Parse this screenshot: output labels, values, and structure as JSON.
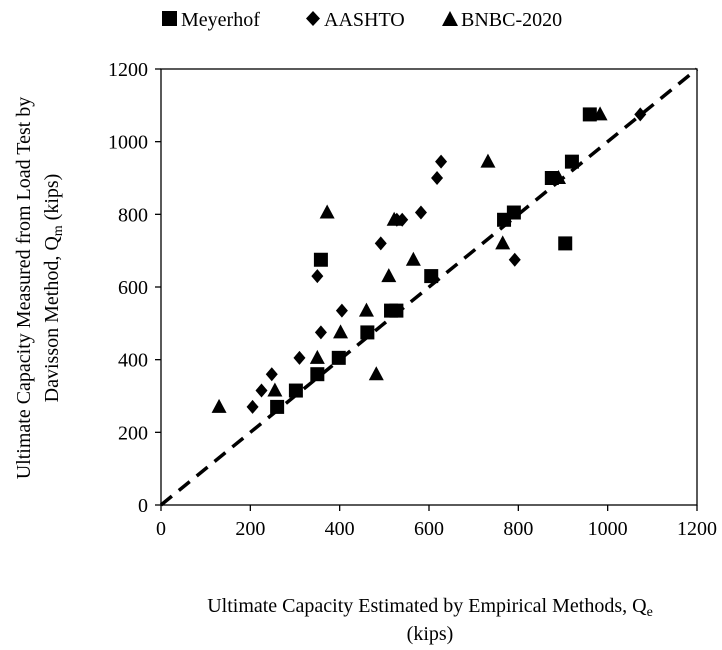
{
  "chart_data": {
    "type": "scatter",
    "xlim": [
      0,
      1200
    ],
    "ylim": [
      0,
      1200
    ],
    "x_ticks": [
      0,
      200,
      400,
      600,
      800,
      1000,
      1200
    ],
    "y_ticks": [
      0,
      200,
      400,
      600,
      800,
      1000,
      1200
    ],
    "grid": false,
    "legend_position": "top",
    "xlabel": {
      "main": "Ultimate Capacity Estimated by Empirical Methods, Q",
      "sub": "e",
      "line2": "(kips)"
    },
    "ylabel": {
      "line1": "Ultimate Capacity Measured from Load Test by",
      "line2_main": "Davisson Method, Q",
      "line2_sub": "m",
      "line2_tail": " (kips)"
    },
    "reference_line": {
      "style": "dashed",
      "from": [
        0,
        0
      ],
      "to": [
        1200,
        1200
      ]
    },
    "series": [
      {
        "name": "Meyerhof",
        "marker": "square",
        "color": "#000000",
        "points": [
          [
            260,
            270
          ],
          [
            302,
            315
          ],
          [
            350,
            360
          ],
          [
            358,
            675
          ],
          [
            398,
            405
          ],
          [
            462,
            475
          ],
          [
            515,
            535
          ],
          [
            527,
            535
          ],
          [
            605,
            630
          ],
          [
            768,
            785
          ],
          [
            790,
            805
          ],
          [
            875,
            900
          ],
          [
            905,
            720
          ],
          [
            920,
            945
          ],
          [
            960,
            1075
          ]
        ]
      },
      {
        "name": "AASHTO",
        "marker": "diamond",
        "color": "#000000",
        "points": [
          [
            205,
            270
          ],
          [
            225,
            315
          ],
          [
            248,
            360
          ],
          [
            310,
            405
          ],
          [
            350,
            630
          ],
          [
            358,
            475
          ],
          [
            405,
            535
          ],
          [
            492,
            720
          ],
          [
            528,
            785
          ],
          [
            540,
            785
          ],
          [
            582,
            805
          ],
          [
            618,
            900
          ],
          [
            627,
            945
          ],
          [
            792,
            675
          ],
          [
            1073,
            1075
          ]
        ]
      },
      {
        "name": "BNBC-2020",
        "marker": "triangle",
        "color": "#000000",
        "points": [
          [
            130,
            270
          ],
          [
            255,
            315
          ],
          [
            350,
            405
          ],
          [
            372,
            805
          ],
          [
            402,
            475
          ],
          [
            460,
            535
          ],
          [
            482,
            360
          ],
          [
            510,
            630
          ],
          [
            522,
            785
          ],
          [
            565,
            675
          ],
          [
            732,
            945
          ],
          [
            765,
            720
          ],
          [
            890,
            900
          ],
          [
            983,
            1075
          ]
        ]
      }
    ]
  }
}
